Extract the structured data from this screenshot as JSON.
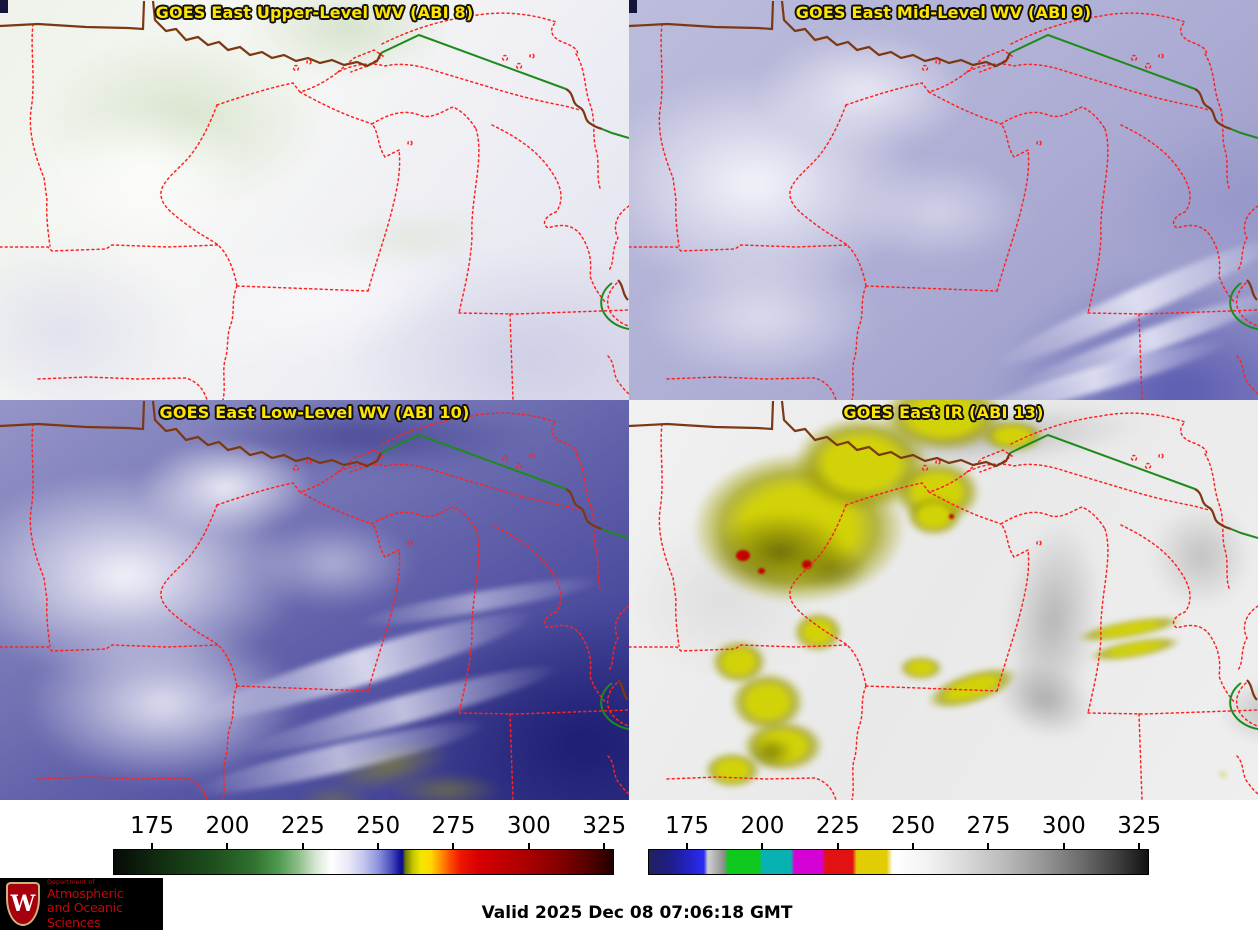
{
  "style": {
    "panel_title_color": "#ffe400",
    "state_border_color": "#ff2222",
    "shoreline_color": "#7b3812",
    "international_border_color": "#1e8a1e",
    "brand_color": "#c5050c"
  },
  "panels": [
    {
      "title": "GOES East Upper-Level WV (ABI 8)"
    },
    {
      "title": "GOES East Mid-Level WV (ABI 9)"
    },
    {
      "title": "GOES East Low-Level WV (ABI 10)"
    },
    {
      "title": "GOES East IR (ABI 13)"
    }
  ],
  "colorbars": {
    "tick_labels": [
      "175",
      "200",
      "225",
      "250",
      "275",
      "300",
      "325"
    ],
    "tick_positions_pct": [
      7.8,
      22.84,
      37.88,
      52.92,
      67.96,
      83.0,
      98.04
    ],
    "wv_gradient_stops": [
      "#060a06 0%",
      "#123012 10%",
      "#1e4f1e 20%",
      "#2f712f 28%",
      "#4e9a4e 33%",
      "#8fbe8a 37%",
      "#d7e7d3 40.5%",
      "#ffffff 43.5%",
      "#e9e9f8 47%",
      "#c3c6ee 50%",
      "#8d92dc 53%",
      "#4b50c0 55.5%",
      "#16169e 57.2%",
      "#0b0b8a 57.8%",
      "#6e7e00 58.4%",
      "#c8c800 60%",
      "#f2e800 61.5%",
      "#ffd800 63.5%",
      "#ff9000 65.5%",
      "#ff4800 67.5%",
      "#ee1600 69.5%",
      "#d80000 73%",
      "#c00000 78%",
      "#a30000 84%",
      "#7e0000 90%",
      "#560000 95%",
      "#330000 98.5%",
      "#1f0000 100%"
    ],
    "ir_gradient_stops": [
      "#22225e 0%",
      "#1d1d80 3.5%",
      "#2121b4 7%",
      "#2828e6 10%",
      "#2c2cf0 11%",
      "#d0d0d0 11.8%",
      "#c4c4c4 12.5%",
      "#8e8e8e 15%",
      "#0ec81e 15.8%",
      "#0ec81e 22%",
      "#08b2b2 22.8%",
      "#08b2b2 28.4%",
      "#d402d4 29.2%",
      "#d402d4 34.6%",
      "#e21212 35.4%",
      "#e21212 40.8%",
      "#e2cc04 41.6%",
      "#e2cc04 47.6%",
      "#ffffff 48.8%",
      "#f2f2f2 56%",
      "#dadada 63%",
      "#bcbcbc 71%",
      "#969696 79%",
      "#6a6a6a 87%",
      "#3e3e3e 94%",
      "#121212 100%"
    ]
  },
  "footer": {
    "valid_text": "Valid 2025 Dec 08 07:06:18 GMT",
    "logo": {
      "department": "Department of",
      "name_line1": "Atmospheric",
      "name_line2": "and Oceanic Sciences",
      "monogram": "W"
    }
  }
}
